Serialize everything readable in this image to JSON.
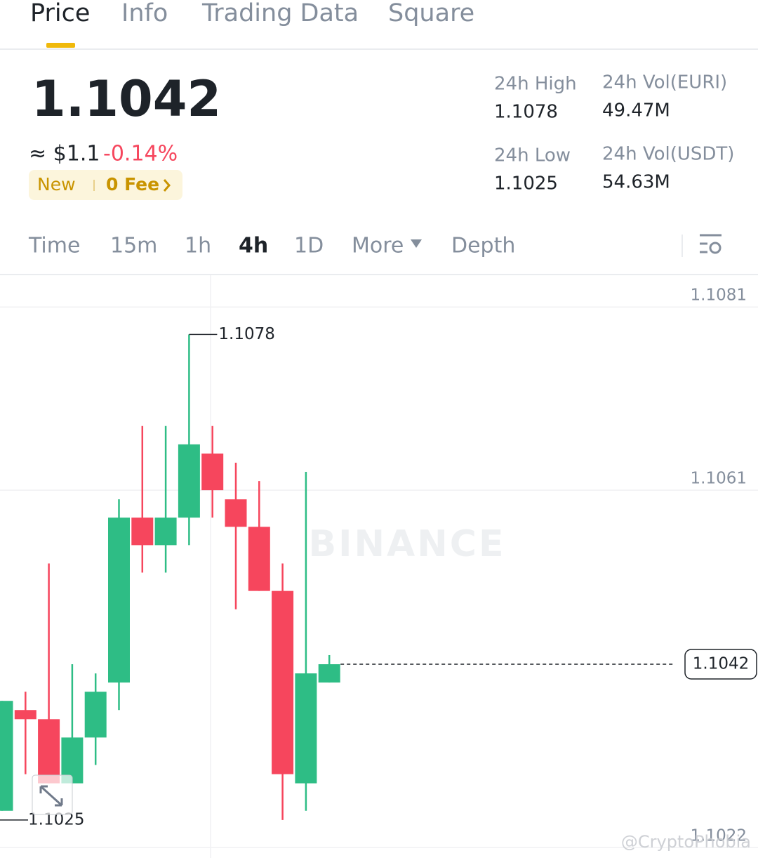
{
  "tabs": [
    "Price",
    "Info",
    "Trading Data",
    "Square"
  ],
  "header": {
    "price": "1.1042",
    "usd": "≈ $1.1",
    "change": "-0.14%",
    "badge": "New",
    "fee": "0 Fee"
  },
  "stats": [
    {
      "label": "24h High",
      "value": "1.1078"
    },
    {
      "label": "24h Vol(EURI)",
      "value": "49.47M"
    },
    {
      "label": "24h Low",
      "value": "1.1025"
    },
    {
      "label": "24h Vol(USDT)",
      "value": "54.63M"
    }
  ],
  "intervals": [
    "Time",
    "15m",
    "1h",
    "4h",
    "1D",
    "More",
    "Depth"
  ],
  "chart": {
    "type": "candlestick",
    "ylim": [
      1.1021,
      1.1085
    ],
    "yticks": [
      1.1081,
      1.1061,
      1.1022
    ],
    "up_color": "#2ebd85",
    "down_color": "#f6465d",
    "candles": [
      {
        "open": 1.1026,
        "high": 1.1038,
        "low": 1.1026,
        "close": 1.1038
      },
      {
        "open": 1.1037,
        "high": 1.1039,
        "low": 1.103,
        "close": 1.1036
      },
      {
        "open": 1.1036,
        "high": 1.1053,
        "low": 1.1029,
        "close": 1.1029
      },
      {
        "open": 1.1029,
        "high": 1.1042,
        "low": 1.1029,
        "close": 1.1034
      },
      {
        "open": 1.1034,
        "high": 1.1041,
        "low": 1.1031,
        "close": 1.1039
      },
      {
        "open": 1.104,
        "high": 1.106,
        "low": 1.1037,
        "close": 1.1058
      },
      {
        "open": 1.1058,
        "high": 1.1068,
        "low": 1.1052,
        "close": 1.1055
      },
      {
        "open": 1.1055,
        "high": 1.1068,
        "low": 1.1052,
        "close": 1.1058
      },
      {
        "open": 1.1058,
        "high": 1.1078,
        "low": 1.1055,
        "close": 1.1066
      },
      {
        "open": 1.1065,
        "high": 1.1068,
        "low": 1.1058,
        "close": 1.1061
      },
      {
        "open": 1.106,
        "high": 1.1064,
        "low": 1.1048,
        "close": 1.1057
      },
      {
        "open": 1.1057,
        "high": 1.1062,
        "low": 1.105,
        "close": 1.105
      },
      {
        "open": 1.105,
        "high": 1.1053,
        "low": 1.1025,
        "close": 1.103
      },
      {
        "open": 1.1029,
        "high": 1.1063,
        "low": 1.1026,
        "close": 1.1041
      },
      {
        "open": 1.104,
        "high": 1.1043,
        "low": 1.104,
        "close": 1.1042
      }
    ]
  },
  "watermarks": [
    "BINANCE",
    "@CryptoPhobia"
  ]
}
